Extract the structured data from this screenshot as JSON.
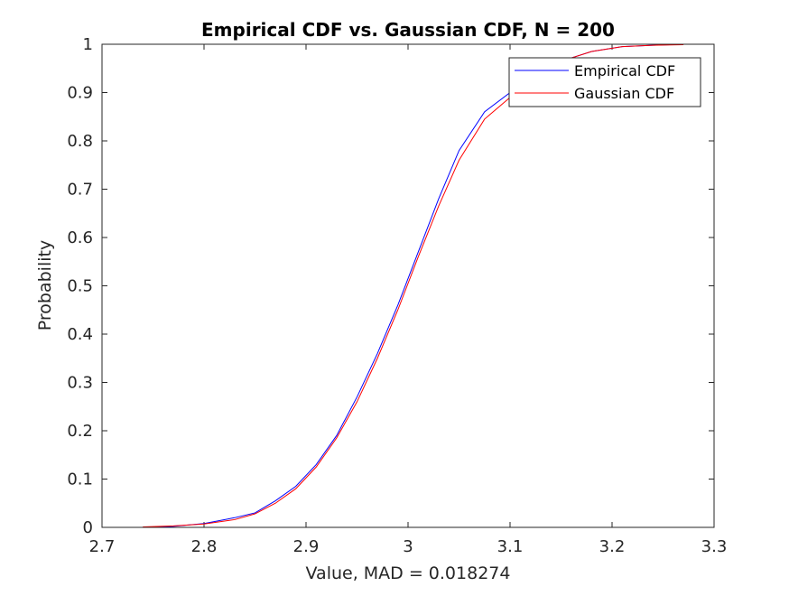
{
  "chart_data": {
    "type": "line",
    "title": "Empirical CDF vs. Gaussian CDF, N = 200",
    "xlabel": "Value, MAD = 0.018274",
    "ylabel": "Probability",
    "xlim": [
      2.7,
      3.3
    ],
    "ylim": [
      0,
      1
    ],
    "xticks": [
      2.7,
      2.8,
      2.9,
      3.0,
      3.1,
      3.2,
      3.3
    ],
    "xtick_labels": [
      "2.7",
      "2.8",
      "2.9",
      "3",
      "3.1",
      "3.2",
      "3.3"
    ],
    "yticks": [
      0,
      0.1,
      0.2,
      0.3,
      0.4,
      0.5,
      0.6,
      0.7,
      0.8,
      0.9,
      1
    ],
    "ytick_labels": [
      "0",
      "0.1",
      "0.2",
      "0.3",
      "0.4",
      "0.5",
      "0.6",
      "0.7",
      "0.8",
      "0.9",
      "1"
    ],
    "grid": false,
    "legend_position": "top-right",
    "series": [
      {
        "name": "Empirical CDF",
        "color": "#0000ff",
        "x": [
          2.74,
          2.77,
          2.8,
          2.83,
          2.85,
          2.87,
          2.89,
          2.91,
          2.93,
          2.95,
          2.97,
          2.99,
          3.01,
          3.03,
          3.05,
          3.075,
          3.1,
          3.12,
          3.15,
          3.18,
          3.21,
          3.24,
          3.27
        ],
        "y": [
          0.0,
          0.002,
          0.008,
          0.02,
          0.03,
          0.055,
          0.085,
          0.13,
          0.19,
          0.27,
          0.36,
          0.46,
          0.57,
          0.68,
          0.78,
          0.86,
          0.9,
          0.94,
          0.965,
          0.985,
          0.995,
          0.998,
          1.0
        ]
      },
      {
        "name": "Gaussian CDF",
        "color": "#ff0000",
        "x": [
          2.74,
          2.77,
          2.8,
          2.83,
          2.85,
          2.87,
          2.89,
          2.91,
          2.93,
          2.95,
          2.97,
          2.99,
          3.01,
          3.03,
          3.05,
          3.075,
          3.1,
          3.12,
          3.15,
          3.18,
          3.21,
          3.24,
          3.27
        ],
        "y": [
          0.001,
          0.003,
          0.007,
          0.016,
          0.028,
          0.05,
          0.08,
          0.125,
          0.185,
          0.26,
          0.35,
          0.45,
          0.56,
          0.665,
          0.76,
          0.845,
          0.89,
          0.93,
          0.965,
          0.985,
          0.995,
          0.998,
          0.999
        ]
      }
    ]
  }
}
